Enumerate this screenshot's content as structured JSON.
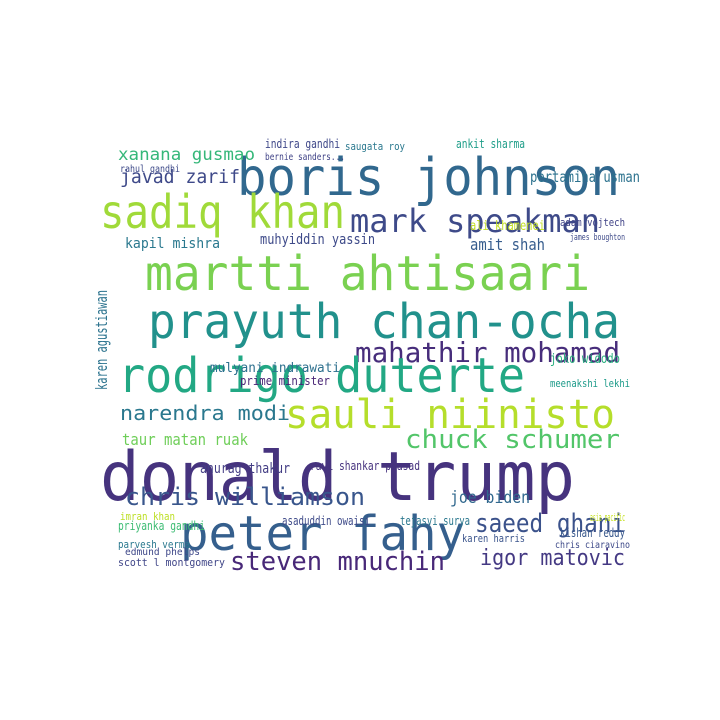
{
  "chart_data": {
    "type": "wordcloud",
    "words": [
      "boris johnson",
      "sadiq khan",
      "mark speakman",
      "martti ahtisaari",
      "prayuth chan-ocha",
      "mahathir mohamad",
      "rodrigo duterte",
      "sauli niinisto",
      "narendra modi",
      "chuck schumer",
      "donald trump",
      "peter fahy",
      "chris williamson",
      "saeed ghani",
      "steven mnuchin",
      "igor matovic",
      "joe biden",
      "xanana gusmao",
      "javad zarif",
      "pertamina usman",
      "ankit sharma",
      "indira gandhi",
      "muhyiddin yassin",
      "kapil mishra",
      "amit shah",
      "ali khamenei",
      "adam vojtech",
      "mulyani indrawati",
      "prime minister",
      "joko widodo",
      "meenakshi lekhi",
      "taur matan ruak",
      "anurag thakur",
      "ravi shankar prasad",
      "tejasvi surya",
      "kishan reddy",
      "karen harris",
      "chris ciaravino",
      "priyanka gandhi",
      "parvesh verma",
      "scott l montgomery",
      "asaduddin owaisi",
      "imran khan",
      "edmund phelps",
      "karen agustiawan",
      "asia pacific",
      "rahul gandhi",
      "bernie sanders...",
      "saugata roy",
      "james boughton"
    ]
  }
}
